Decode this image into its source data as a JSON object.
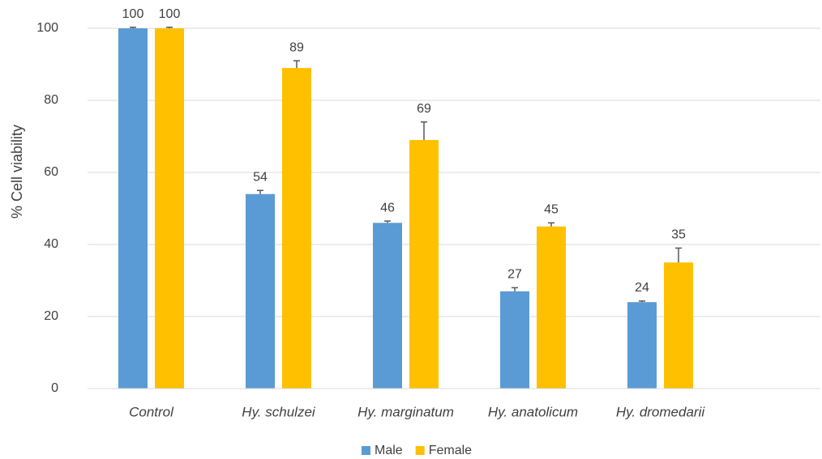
{
  "chart_data": {
    "type": "bar",
    "y_label": "% Cell viability",
    "categories": [
      "Control",
      "Hy. schulzei",
      "Hy. marginatum",
      "Hy. anatolicum",
      "Hy. dromedarii"
    ],
    "series": [
      {
        "name": "Male",
        "color": "#5b9bd5",
        "values": [
          100,
          54,
          46,
          27,
          24
        ],
        "errors": [
          0.3,
          1,
          0.5,
          1,
          0.3
        ]
      },
      {
        "name": "Female",
        "color": "#ffc000",
        "values": [
          100,
          89,
          69,
          45,
          35
        ],
        "errors": [
          0.3,
          2,
          5,
          1,
          4
        ]
      }
    ],
    "ylim": [
      0,
      100
    ],
    "yticks": [
      0,
      20,
      40,
      60,
      80,
      100
    ],
    "grid": true,
    "legend": "bottom"
  }
}
